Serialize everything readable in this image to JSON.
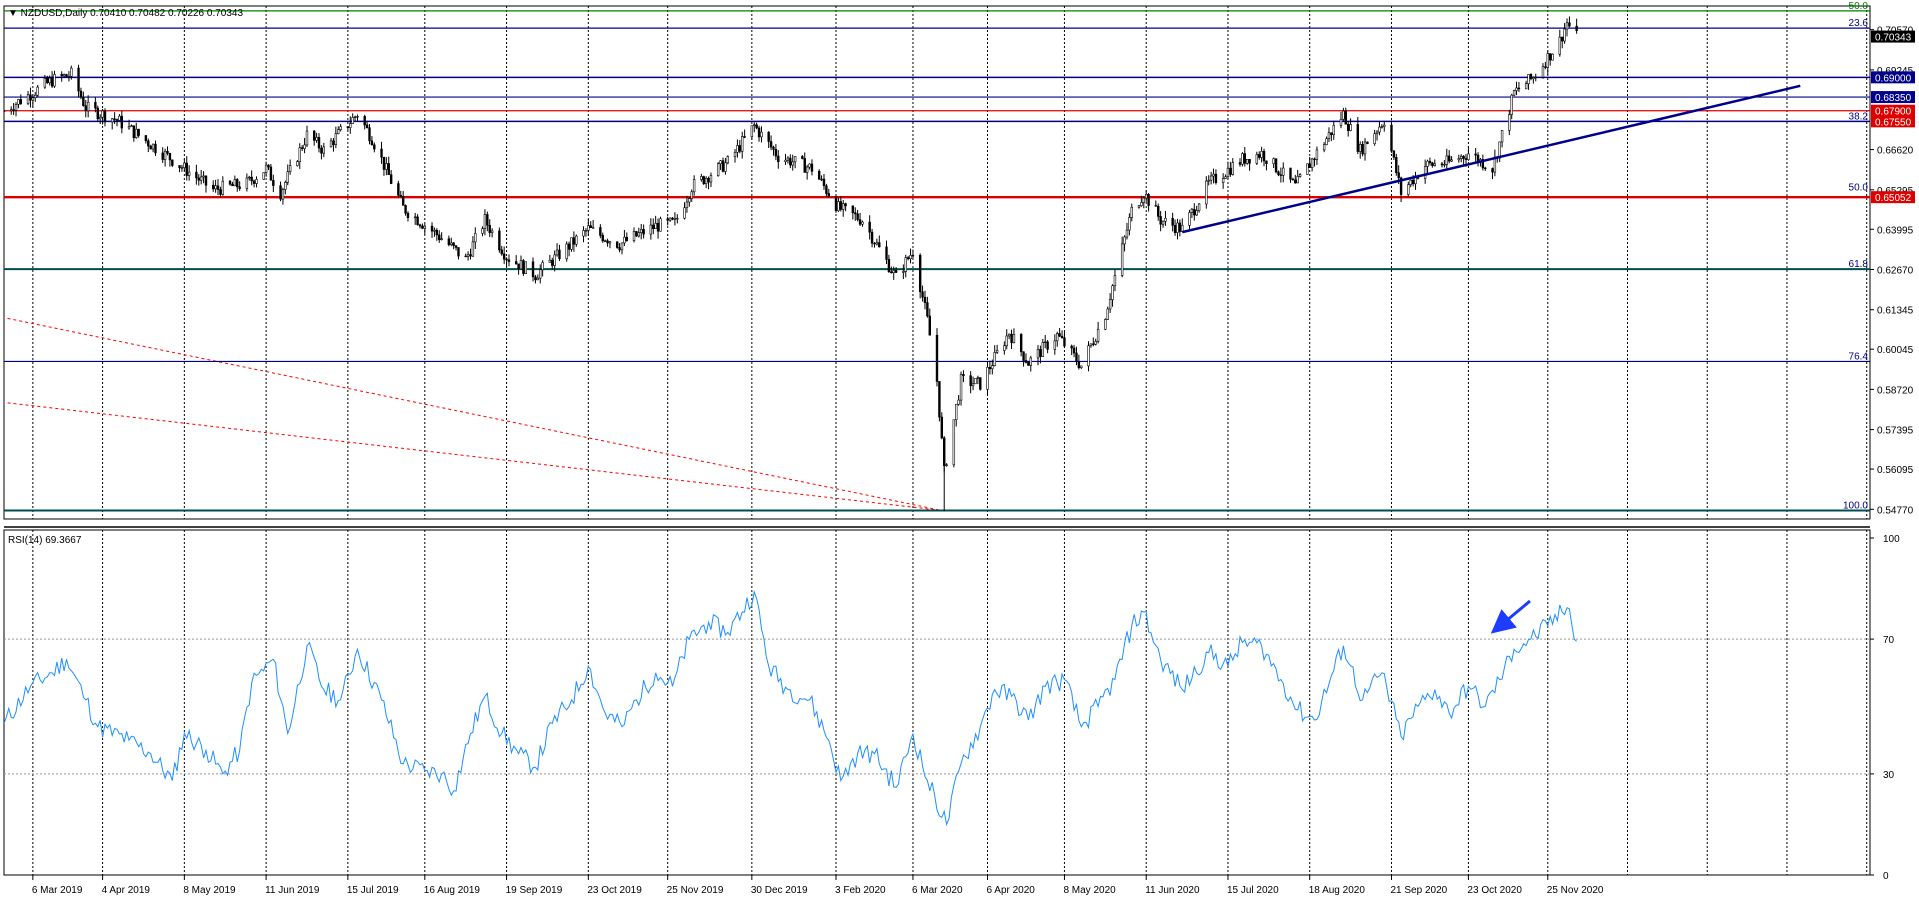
{
  "header": {
    "price_title": "▼ NZDUSD,Daily  0.70410 0.70482 0.70226 0.70343",
    "rsi_title": "RSI(14) 69.3667"
  },
  "colors": {
    "candle": "#000000",
    "rsi_line": "#1e90ff",
    "fib_line": "#00008b",
    "level_line": "#dc0000",
    "top_line": "#008000",
    "trendline": "#00008b",
    "dotted_red": "#ff0000",
    "grid": "#000000",
    "arrow": "#1e3cff"
  },
  "chart_data": [
    {
      "type": "candlestick",
      "symbol": "NZDUSD",
      "timeframe": "Daily",
      "ohlc_last": {
        "open": 0.7041,
        "high": 0.70482,
        "low": 0.70226,
        "close": 0.70343
      },
      "ylim": [
        0.5445,
        0.7135
      ],
      "x_tick_labels": [
        "6 Mar 2019",
        "4 Apr 2019",
        "8 May 2019",
        "11 Jun 2019",
        "15 Jul 2019",
        "16 Aug 2019",
        "19 Sep 2019",
        "23 Oct 2019",
        "25 Nov 2019",
        "30 Dec 2019",
        "3 Feb 2020",
        "6 Mar 2020",
        "6 Apr 2020",
        "8 May 2020",
        "11 Jun 2020",
        "15 Jul 2020",
        "18 Aug 2020",
        "21 Sep 2020",
        "23 Oct 2020",
        "25 Nov 2020"
      ],
      "y_tick_labels": [
        "0.70570",
        "0.69245",
        "0.66620",
        "0.65295",
        "0.63995",
        "0.62670",
        "0.61345",
        "0.60045",
        "0.58720",
        "0.57395",
        "0.56095",
        "0.54770"
      ],
      "y_tick_values": [
        0.7057,
        0.69245,
        0.6662,
        0.65295,
        0.63995,
        0.6267,
        0.61345,
        0.60045,
        0.5872,
        0.57395,
        0.56095,
        0.5477
      ],
      "price_badges": [
        {
          "label": "0.70343",
          "value": 0.70343,
          "bg": "#000000",
          "fg": "#ffffff"
        },
        {
          "label": "0.69000",
          "value": 0.69,
          "bg": "#00008b",
          "fg": "#ffffff"
        },
        {
          "label": "0.68350",
          "value": 0.6835,
          "bg": "#00008b",
          "fg": "#ffffff"
        },
        {
          "label": "0.67900",
          "value": 0.679,
          "bg": "#dc0000",
          "fg": "#ffffff"
        },
        {
          "label": "0.67550",
          "value": 0.6755,
          "bg": "#dc0000",
          "fg": "#ffffff"
        },
        {
          "label": "0.65052",
          "value": 0.65052,
          "bg": "#dc0000",
          "fg": "#ffffff"
        }
      ],
      "horizontal_levels": [
        {
          "value": 0.7119,
          "color": "#008000",
          "width": 1.2
        },
        {
          "value": 0.7062,
          "color": "#00008b",
          "width": 1.2
        },
        {
          "value": 0.69,
          "color": "#00008b",
          "width": 1.5
        },
        {
          "value": 0.6835,
          "color": "#00008b",
          "width": 1.2
        },
        {
          "value": 0.679,
          "color": "#dc0000",
          "width": 1.2
        },
        {
          "value": 0.6755,
          "color": "#00008b",
          "width": 1.5
        },
        {
          "value": 0.65052,
          "color": "#dc0000",
          "width": 2.4
        },
        {
          "value": 0.6268,
          "color": "#004f4f",
          "width": 2
        },
        {
          "value": 0.5964,
          "color": "#00008b",
          "width": 1.2
        },
        {
          "value": 0.5473,
          "color": "#004f4f",
          "width": 2
        }
      ],
      "fib_labels": [
        {
          "label": "50.0",
          "value": 0.7119,
          "color": "#008000"
        },
        {
          "label": "23.6",
          "value": 0.7062,
          "color": "#00008b"
        },
        {
          "label": "38.2",
          "value": 0.6755,
          "color": "#00008b"
        },
        {
          "label": "50.0",
          "value": 0.652,
          "color": "#00008b"
        },
        {
          "label": "61.8",
          "value": 0.6268,
          "color": "#00008b"
        },
        {
          "label": "76.4",
          "value": 0.5964,
          "color": "#00008b"
        },
        {
          "label": "100.0",
          "value": 0.5473,
          "color": "#00008b"
        }
      ],
      "trendline": {
        "start": {
          "date": "2020-06-26",
          "price": 0.639
        },
        "end": {
          "date": "2021-03-10",
          "price": 0.6872
        }
      },
      "dotted_lines": [
        {
          "start": {
            "date": "2019-02-21",
            "price": 0.611
          },
          "end": {
            "date": "2020-03-18",
            "price": 0.5473
          }
        },
        {
          "start": {
            "date": "2019-02-21",
            "price": 0.583
          },
          "end": {
            "date": "2020-03-18",
            "price": 0.5473
          }
        }
      ],
      "close_path": [
        {
          "date": "2019-02-22",
          "price": 0.679
        },
        {
          "date": "2019-03-14",
          "price": 0.689
        },
        {
          "date": "2019-03-22",
          "price": 0.691
        },
        {
          "date": "2019-03-28",
          "price": 0.68
        },
        {
          "date": "2019-04-10",
          "price": 0.676
        },
        {
          "date": "2019-05-01",
          "price": 0.664
        },
        {
          "date": "2019-05-20",
          "price": 0.653
        },
        {
          "date": "2019-06-03",
          "price": 0.655
        },
        {
          "date": "2019-06-11",
          "price": 0.66
        },
        {
          "date": "2019-06-17",
          "price": 0.652
        },
        {
          "date": "2019-06-28",
          "price": 0.671
        },
        {
          "date": "2019-07-05",
          "price": 0.666
        },
        {
          "date": "2019-07-19",
          "price": 0.678
        },
        {
          "date": "2019-07-25",
          "price": 0.67
        },
        {
          "date": "2019-08-07",
          "price": 0.647
        },
        {
          "date": "2019-08-23",
          "price": 0.637
        },
        {
          "date": "2019-09-02",
          "price": 0.63
        },
        {
          "date": "2019-09-10",
          "price": 0.643
        },
        {
          "date": "2019-09-19",
          "price": 0.631
        },
        {
          "date": "2019-10-01",
          "price": 0.625
        },
        {
          "date": "2019-10-10",
          "price": 0.631
        },
        {
          "date": "2019-10-23",
          "price": 0.64
        },
        {
          "date": "2019-11-05",
          "price": 0.635
        },
        {
          "date": "2019-11-20",
          "price": 0.641
        },
        {
          "date": "2019-11-28",
          "price": 0.642
        },
        {
          "date": "2019-12-05",
          "price": 0.654
        },
        {
          "date": "2019-12-20",
          "price": 0.662
        },
        {
          "date": "2019-12-31",
          "price": 0.674
        },
        {
          "date": "2020-01-10",
          "price": 0.664
        },
        {
          "date": "2020-01-24",
          "price": 0.66
        },
        {
          "date": "2020-02-04",
          "price": 0.647
        },
        {
          "date": "2020-02-14",
          "price": 0.643
        },
        {
          "date": "2020-02-28",
          "price": 0.624
        },
        {
          "date": "2020-03-06",
          "price": 0.633
        },
        {
          "date": "2020-03-12",
          "price": 0.61
        },
        {
          "date": "2020-03-16",
          "price": 0.59
        },
        {
          "date": "2020-03-19",
          "price": 0.56
        },
        {
          "date": "2020-03-26",
          "price": 0.59
        },
        {
          "date": "2020-04-03",
          "price": 0.589
        },
        {
          "date": "2020-04-15",
          "price": 0.606
        },
        {
          "date": "2020-04-23",
          "price": 0.596
        },
        {
          "date": "2020-05-05",
          "price": 0.605
        },
        {
          "date": "2020-05-15",
          "price": 0.595
        },
        {
          "date": "2020-05-25",
          "price": 0.612
        },
        {
          "date": "2020-06-05",
          "price": 0.646
        },
        {
          "date": "2020-06-10",
          "price": 0.652
        },
        {
          "date": "2020-06-17",
          "price": 0.643
        },
        {
          "date": "2020-06-26",
          "price": 0.64
        },
        {
          "date": "2020-07-07",
          "price": 0.655
        },
        {
          "date": "2020-07-21",
          "price": 0.663
        },
        {
          "date": "2020-07-29",
          "price": 0.665
        },
        {
          "date": "2020-08-12",
          "price": 0.654
        },
        {
          "date": "2020-08-20",
          "price": 0.664
        },
        {
          "date": "2020-09-01",
          "price": 0.678
        },
        {
          "date": "2020-09-08",
          "price": 0.666
        },
        {
          "date": "2020-09-18",
          "price": 0.676
        },
        {
          "date": "2020-09-25",
          "price": 0.652
        },
        {
          "date": "2020-10-05",
          "price": 0.661
        },
        {
          "date": "2020-10-15",
          "price": 0.662
        },
        {
          "date": "2020-10-23",
          "price": 0.665
        },
        {
          "date": "2020-11-02",
          "price": 0.66
        },
        {
          "date": "2020-11-11",
          "price": 0.685
        },
        {
          "date": "2020-11-19",
          "price": 0.69
        },
        {
          "date": "2020-11-30",
          "price": 0.702
        },
        {
          "date": "2020-12-03",
          "price": 0.708
        },
        {
          "date": "2020-12-07",
          "price": 0.7034
        }
      ]
    },
    {
      "type": "line",
      "name": "RSI(14)",
      "last_value": 69.3667,
      "ylim": [
        0,
        100
      ],
      "y_tick_labels": [
        "100",
        "70",
        "30",
        "0"
      ],
      "y_tick_values": [
        100,
        70,
        30,
        0
      ],
      "levels": [
        70,
        30
      ],
      "points": [
        {
          "date": "2019-02-22",
          "value": 45
        },
        {
          "date": "2019-03-05",
          "value": 56
        },
        {
          "date": "2019-03-14",
          "value": 60
        },
        {
          "date": "2019-03-20",
          "value": 64
        },
        {
          "date": "2019-03-28",
          "value": 52
        },
        {
          "date": "2019-04-02",
          "value": 44
        },
        {
          "date": "2019-04-15",
          "value": 40
        },
        {
          "date": "2019-04-24",
          "value": 36
        },
        {
          "date": "2019-05-03",
          "value": 28
        },
        {
          "date": "2019-05-08",
          "value": 42
        },
        {
          "date": "2019-05-17",
          "value": 37
        },
        {
          "date": "2019-05-24",
          "value": 30
        },
        {
          "date": "2019-05-31",
          "value": 37
        },
        {
          "date": "2019-06-05",
          "value": 57
        },
        {
          "date": "2019-06-14",
          "value": 64
        },
        {
          "date": "2019-06-20",
          "value": 42
        },
        {
          "date": "2019-06-28",
          "value": 68
        },
        {
          "date": "2019-07-05",
          "value": 55
        },
        {
          "date": "2019-07-12",
          "value": 52
        },
        {
          "date": "2019-07-19",
          "value": 67
        },
        {
          "date": "2019-07-29",
          "value": 52
        },
        {
          "date": "2019-08-07",
          "value": 33
        },
        {
          "date": "2019-08-16",
          "value": 31
        },
        {
          "date": "2019-08-23",
          "value": 30
        },
        {
          "date": "2019-08-28",
          "value": 25
        },
        {
          "date": "2019-09-04",
          "value": 42
        },
        {
          "date": "2019-09-10",
          "value": 53
        },
        {
          "date": "2019-09-17",
          "value": 42
        },
        {
          "date": "2019-09-24",
          "value": 36
        },
        {
          "date": "2019-10-01",
          "value": 32
        },
        {
          "date": "2019-10-08",
          "value": 45
        },
        {
          "date": "2019-10-16",
          "value": 52
        },
        {
          "date": "2019-10-23",
          "value": 62
        },
        {
          "date": "2019-10-30",
          "value": 48
        },
        {
          "date": "2019-11-06",
          "value": 44
        },
        {
          "date": "2019-11-12",
          "value": 52
        },
        {
          "date": "2019-11-20",
          "value": 60
        },
        {
          "date": "2019-11-27",
          "value": 56
        },
        {
          "date": "2019-12-04",
          "value": 70
        },
        {
          "date": "2019-12-12",
          "value": 75
        },
        {
          "date": "2019-12-20",
          "value": 72
        },
        {
          "date": "2019-12-31",
          "value": 84
        },
        {
          "date": "2020-01-06",
          "value": 62
        },
        {
          "date": "2020-01-14",
          "value": 55
        },
        {
          "date": "2020-01-23",
          "value": 52
        },
        {
          "date": "2020-01-31",
          "value": 40
        },
        {
          "date": "2020-02-05",
          "value": 28
        },
        {
          "date": "2020-02-12",
          "value": 36
        },
        {
          "date": "2020-02-19",
          "value": 36
        },
        {
          "date": "2020-02-28",
          "value": 26
        },
        {
          "date": "2020-03-06",
          "value": 42
        },
        {
          "date": "2020-03-12",
          "value": 28
        },
        {
          "date": "2020-03-20",
          "value": 15
        },
        {
          "date": "2020-03-26",
          "value": 33
        },
        {
          "date": "2020-04-03",
          "value": 44
        },
        {
          "date": "2020-04-09",
          "value": 55
        },
        {
          "date": "2020-04-16",
          "value": 53
        },
        {
          "date": "2020-04-23",
          "value": 46
        },
        {
          "date": "2020-04-30",
          "value": 56
        },
        {
          "date": "2020-05-08",
          "value": 58
        },
        {
          "date": "2020-05-15",
          "value": 44
        },
        {
          "date": "2020-05-22",
          "value": 50
        },
        {
          "date": "2020-05-29",
          "value": 58
        },
        {
          "date": "2020-06-05",
          "value": 74
        },
        {
          "date": "2020-06-10",
          "value": 78
        },
        {
          "date": "2020-06-17",
          "value": 64
        },
        {
          "date": "2020-06-26",
          "value": 55
        },
        {
          "date": "2020-07-07",
          "value": 66
        },
        {
          "date": "2020-07-15",
          "value": 62
        },
        {
          "date": "2020-07-21",
          "value": 69
        },
        {
          "date": "2020-07-29",
          "value": 68
        },
        {
          "date": "2020-08-06",
          "value": 58
        },
        {
          "date": "2020-08-13",
          "value": 49
        },
        {
          "date": "2020-08-20",
          "value": 46
        },
        {
          "date": "2020-09-01",
          "value": 68
        },
        {
          "date": "2020-09-09",
          "value": 52
        },
        {
          "date": "2020-09-17",
          "value": 60
        },
        {
          "date": "2020-09-25",
          "value": 41
        },
        {
          "date": "2020-10-02",
          "value": 50
        },
        {
          "date": "2020-10-09",
          "value": 55
        },
        {
          "date": "2020-10-15",
          "value": 48
        },
        {
          "date": "2020-10-23",
          "value": 56
        },
        {
          "date": "2020-10-30",
          "value": 50
        },
        {
          "date": "2020-11-05",
          "value": 58
        },
        {
          "date": "2020-11-11",
          "value": 67
        },
        {
          "date": "2020-11-18",
          "value": 70
        },
        {
          "date": "2020-11-25",
          "value": 74
        },
        {
          "date": "2020-12-01",
          "value": 78
        },
        {
          "date": "2020-12-04",
          "value": 79
        },
        {
          "date": "2020-12-07",
          "value": 69.3667
        }
      ]
    }
  ]
}
